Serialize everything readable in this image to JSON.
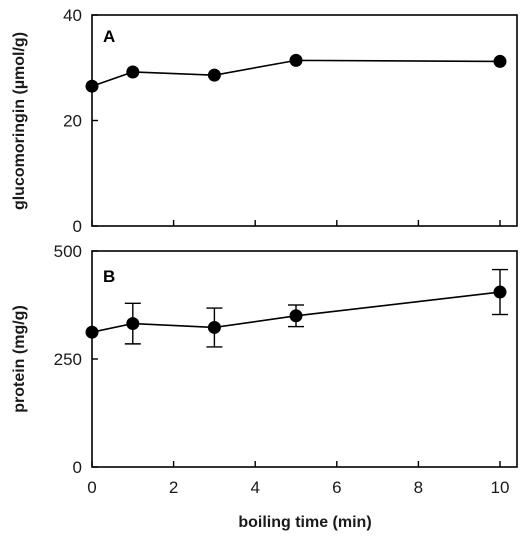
{
  "chart_data": [
    {
      "type": "line",
      "panel_label": "A",
      "ylabel": "glucomoringin (µmol/g)",
      "xlabel": "",
      "xlim": [
        0,
        10
      ],
      "ylim": [
        0,
        40
      ],
      "yticks": [
        0,
        20,
        40
      ],
      "xticks": [
        0,
        2,
        4,
        6,
        8,
        10
      ],
      "x": [
        0,
        1,
        3,
        5,
        10
      ],
      "values": [
        26.5,
        29.2,
        28.6,
        31.4,
        31.2
      ],
      "error": [
        0,
        0,
        0,
        0,
        0
      ]
    },
    {
      "type": "line",
      "panel_label": "B",
      "ylabel": "protein (mg/g)",
      "xlabel": "boiling time (min)",
      "xlim": [
        0,
        10
      ],
      "ylim": [
        0,
        500
      ],
      "yticks": [
        0,
        250,
        500
      ],
      "xticks": [
        0,
        2,
        4,
        6,
        8,
        10
      ],
      "xtick_labels": [
        "0",
        "2",
        "4",
        "6",
        "8",
        "10"
      ],
      "x": [
        0,
        1,
        3,
        5,
        10
      ],
      "values": [
        312,
        332,
        323,
        350,
        405
      ],
      "error": [
        0,
        47,
        45,
        25,
        52
      ]
    }
  ]
}
